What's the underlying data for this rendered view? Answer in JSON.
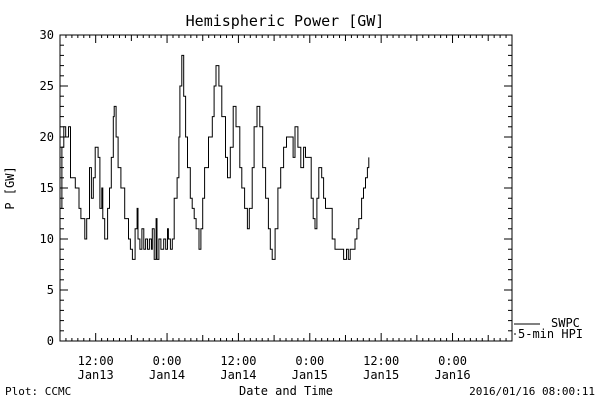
{
  "chart_data": {
    "type": "line",
    "title": "Hemispheric Power [GW]",
    "xlabel": "Date and Time",
    "ylabel": "P [GW]",
    "ylim": [
      0,
      30
    ],
    "yticks": [
      0,
      5,
      10,
      15,
      20,
      25,
      30
    ],
    "y_minor_step": 1,
    "xlim": [
      "2016-01-13 06:00",
      "2016-01-16 10:00"
    ],
    "xticks": [
      {
        "time": "2016-01-13 12:00",
        "line1": "12:00",
        "line2": "Jan13"
      },
      {
        "time": "2016-01-14 00:00",
        "line1": "0:00",
        "line2": "Jan14"
      },
      {
        "time": "2016-01-14 12:00",
        "line1": "12:00",
        "line2": "Jan14"
      },
      {
        "time": "2016-01-15 00:00",
        "line1": "0:00",
        "line2": "Jan15"
      },
      {
        "time": "2016-01-15 12:00",
        "line1": "12:00",
        "line2": "Jan15"
      },
      {
        "time": "2016-01-16 00:00",
        "line1": "0:00",
        "line2": "Jan16"
      }
    ],
    "grid": false,
    "legend": {
      "position": "bottom-right",
      "entries": [
        "SWPC",
        "5-min HPI"
      ]
    },
    "series": [
      {
        "name": "5-min HPI",
        "color": "#000000",
        "points": [
          [
            "2016-01-13 06:00",
            13
          ],
          [
            "2016-01-13 06:19",
            19
          ],
          [
            "2016-01-13 06:38",
            21
          ],
          [
            "2016-01-13 06:58",
            20
          ],
          [
            "2016-01-13 07:26",
            21
          ],
          [
            "2016-01-13 07:46",
            16
          ],
          [
            "2016-01-13 08:34",
            15
          ],
          [
            "2016-01-13 09:12",
            13
          ],
          [
            "2016-01-13 09:31",
            12
          ],
          [
            "2016-01-13 10:10",
            10
          ],
          [
            "2016-01-13 10:29",
            12
          ],
          [
            "2016-01-13 10:58",
            17
          ],
          [
            "2016-01-13 11:17",
            14
          ],
          [
            "2016-01-13 11:36",
            16
          ],
          [
            "2016-01-13 11:55",
            19
          ],
          [
            "2016-01-13 12:24",
            18
          ],
          [
            "2016-01-13 12:43",
            13
          ],
          [
            "2016-01-13 13:02",
            15
          ],
          [
            "2016-01-13 13:12",
            12
          ],
          [
            "2016-01-13 13:31",
            10
          ],
          [
            "2016-01-13 14:00",
            13
          ],
          [
            "2016-01-13 14:19",
            15
          ],
          [
            "2016-01-13 14:38",
            18
          ],
          [
            "2016-01-13 14:58",
            22
          ],
          [
            "2016-01-13 15:07",
            23
          ],
          [
            "2016-01-13 15:26",
            20
          ],
          [
            "2016-01-13 15:46",
            17
          ],
          [
            "2016-01-13 16:14",
            15
          ],
          [
            "2016-01-13 16:53",
            12
          ],
          [
            "2016-01-13 17:31",
            10
          ],
          [
            "2016-01-13 17:50",
            9
          ],
          [
            "2016-01-13 18:10",
            8
          ],
          [
            "2016-01-13 18:38",
            11
          ],
          [
            "2016-01-13 18:58",
            13
          ],
          [
            "2016-01-13 19:07",
            10
          ],
          [
            "2016-01-13 19:26",
            9
          ],
          [
            "2016-01-13 19:46",
            11
          ],
          [
            "2016-01-13 20:05",
            9
          ],
          [
            "2016-01-13 20:24",
            10
          ],
          [
            "2016-01-13 20:43",
            9
          ],
          [
            "2016-01-13 21:02",
            10
          ],
          [
            "2016-01-13 21:22",
            9
          ],
          [
            "2016-01-13 21:31",
            11
          ],
          [
            "2016-01-13 21:50",
            8
          ],
          [
            "2016-01-13 22:10",
            12
          ],
          [
            "2016-01-13 22:19",
            8
          ],
          [
            "2016-01-13 22:38",
            10
          ],
          [
            "2016-01-13 22:58",
            9
          ],
          [
            "2016-01-13 23:26",
            10
          ],
          [
            "2016-01-13 23:46",
            9
          ],
          [
            "2016-01-14 00:05",
            11
          ],
          [
            "2016-01-14 00:14",
            10
          ],
          [
            "2016-01-14 00:34",
            9
          ],
          [
            "2016-01-14 00:53",
            10
          ],
          [
            "2016-01-14 01:12",
            14
          ],
          [
            "2016-01-14 01:41",
            16
          ],
          [
            "2016-01-14 02:00",
            20
          ],
          [
            "2016-01-14 02:10",
            25
          ],
          [
            "2016-01-14 02:29",
            28
          ],
          [
            "2016-01-14 02:48",
            24
          ],
          [
            "2016-01-14 03:07",
            20
          ],
          [
            "2016-01-14 03:26",
            17
          ],
          [
            "2016-01-14 03:55",
            14
          ],
          [
            "2016-01-14 04:14",
            13
          ],
          [
            "2016-01-14 04:34",
            12
          ],
          [
            "2016-01-14 04:53",
            11
          ],
          [
            "2016-01-14 05:22",
            9
          ],
          [
            "2016-01-14 05:41",
            11
          ],
          [
            "2016-01-14 06:00",
            14
          ],
          [
            "2016-01-14 06:19",
            17
          ],
          [
            "2016-01-14 06:58",
            20
          ],
          [
            "2016-01-14 07:36",
            22
          ],
          [
            "2016-01-14 07:55",
            25
          ],
          [
            "2016-01-14 08:14",
            27
          ],
          [
            "2016-01-14 08:43",
            25
          ],
          [
            "2016-01-14 09:12",
            22
          ],
          [
            "2016-01-14 09:50",
            18
          ],
          [
            "2016-01-14 10:10",
            16
          ],
          [
            "2016-01-14 10:38",
            19
          ],
          [
            "2016-01-14 11:07",
            23
          ],
          [
            "2016-01-14 11:36",
            21
          ],
          [
            "2016-01-14 12:14",
            17
          ],
          [
            "2016-01-14 12:34",
            15
          ],
          [
            "2016-01-14 13:02",
            13
          ],
          [
            "2016-01-14 13:31",
            11
          ],
          [
            "2016-01-14 13:50",
            13
          ],
          [
            "2016-01-14 14:19",
            17
          ],
          [
            "2016-01-14 14:38",
            21
          ],
          [
            "2016-01-14 15:07",
            23
          ],
          [
            "2016-01-14 15:36",
            21
          ],
          [
            "2016-01-14 16:05",
            17
          ],
          [
            "2016-01-14 16:34",
            14
          ],
          [
            "2016-01-14 17:02",
            11
          ],
          [
            "2016-01-14 17:22",
            9
          ],
          [
            "2016-01-14 17:41",
            8
          ],
          [
            "2016-01-14 18:10",
            11
          ],
          [
            "2016-01-14 18:38",
            15
          ],
          [
            "2016-01-14 19:07",
            17
          ],
          [
            "2016-01-14 19:36",
            19
          ],
          [
            "2016-01-14 20:05",
            20
          ],
          [
            "2016-01-14 21:12",
            18
          ],
          [
            "2016-01-14 21:31",
            21
          ],
          [
            "2016-01-14 22:00",
            19
          ],
          [
            "2016-01-14 22:29",
            17
          ],
          [
            "2016-01-14 22:58",
            19
          ],
          [
            "2016-01-14 23:17",
            18
          ],
          [
            "2016-01-14 23:55",
            18
          ],
          [
            "2016-01-15 00:14",
            14
          ],
          [
            "2016-01-15 00:34",
            12
          ],
          [
            "2016-01-15 00:53",
            11
          ],
          [
            "2016-01-15 01:12",
            14
          ],
          [
            "2016-01-15 01:31",
            17
          ],
          [
            "2016-01-15 02:00",
            16
          ],
          [
            "2016-01-15 02:19",
            14
          ],
          [
            "2016-01-15 02:38",
            13
          ],
          [
            "2016-01-15 03:07",
            13
          ],
          [
            "2016-01-15 03:46",
            10
          ],
          [
            "2016-01-15 04:14",
            9
          ],
          [
            "2016-01-15 05:22",
            9
          ],
          [
            "2016-01-15 05:41",
            8
          ],
          [
            "2016-01-15 06:10",
            9
          ],
          [
            "2016-01-15 06:29",
            8
          ],
          [
            "2016-01-15 06:48",
            9
          ],
          [
            "2016-01-15 07:07",
            9
          ],
          [
            "2016-01-15 07:36",
            10
          ],
          [
            "2016-01-15 07:55",
            11
          ],
          [
            "2016-01-15 08:14",
            12
          ],
          [
            "2016-01-15 08:43",
            14
          ],
          [
            "2016-01-15 09:02",
            15
          ],
          [
            "2016-01-15 09:22",
            16
          ],
          [
            "2016-01-15 09:41",
            17
          ],
          [
            "2016-01-15 09:55",
            18
          ]
        ]
      }
    ]
  },
  "footer": {
    "left": "Plot: CCMC",
    "right": "2016/01/16 08:00:11"
  }
}
